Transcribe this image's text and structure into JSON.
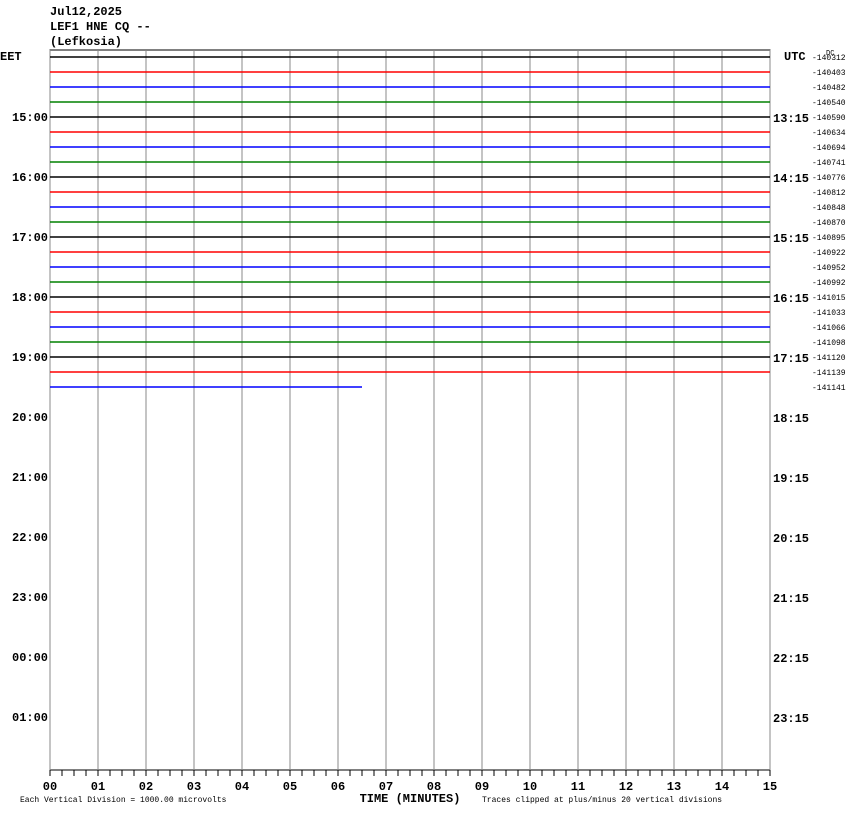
{
  "chart_data": {
    "type": "helicorder",
    "title_lines": [
      "Jul12,2025",
      "LEF1 HNE CQ --",
      "(Lefkosia)"
    ],
    "left_label": "EET",
    "right_label": "UTC",
    "offset_header": "DC",
    "left_times": [
      "15:00",
      "16:00",
      "17:00",
      "18:00",
      "19:00",
      "20:00",
      "21:00",
      "22:00",
      "23:00",
      "00:00",
      "01:00"
    ],
    "right_times": [
      "13:15",
      "14:15",
      "15:15",
      "16:15",
      "17:15",
      "18:15",
      "19:15",
      "20:15",
      "21:15",
      "22:15",
      "23:15"
    ],
    "trace_offsets": [
      -140312,
      -140403,
      -140482,
      -140540,
      -140590,
      -140634,
      -140694,
      -140741,
      -140776,
      -140812,
      -140848,
      -140870,
      -140895,
      -140922,
      -140952,
      -140992,
      -141015,
      -141033,
      -141066,
      -141098,
      -141120,
      -141139,
      -141141
    ],
    "trace_colors": [
      "#000000",
      "#ff0000",
      "#0000ff",
      "#008000"
    ],
    "last_trace_end": 6.5,
    "xlim": [
      0,
      15
    ],
    "xticks": [
      {
        "value": 0,
        "label": "00"
      },
      {
        "value": 1,
        "label": "01"
      },
      {
        "value": 2,
        "label": "02"
      },
      {
        "value": 3,
        "label": "03"
      },
      {
        "value": 4,
        "label": "04"
      },
      {
        "value": 5,
        "label": "05"
      },
      {
        "value": 6,
        "label": "06"
      },
      {
        "value": 7,
        "label": "07"
      },
      {
        "value": 8,
        "label": "08"
      },
      {
        "value": 9,
        "label": "09"
      },
      {
        "value": 10,
        "label": "10"
      },
      {
        "value": 11,
        "label": "11"
      },
      {
        "value": 12,
        "label": "12"
      },
      {
        "value": 13,
        "label": "13"
      },
      {
        "value": 14,
        "label": "14"
      },
      {
        "value": 15,
        "label": "15"
      }
    ],
    "xlabel": "TIME (MINUTES)",
    "note_left": "Each Vertical Division = 1000.00 microvolts",
    "note_right": "Traces clipped at plus/minus 20 vertical divisions"
  }
}
